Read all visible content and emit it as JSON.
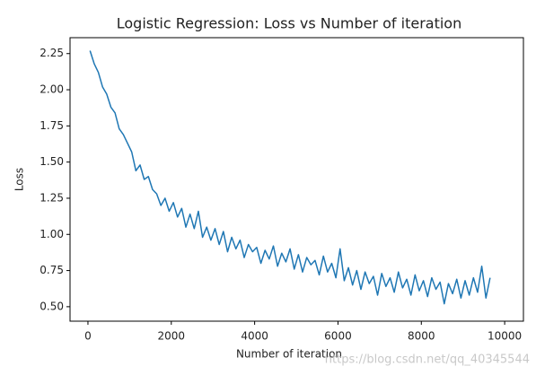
{
  "chart_data": {
    "type": "line",
    "title": "Logistic Regression: Loss vs Number of iteration",
    "x_label": "Number of iteration",
    "y_label": "Loss",
    "watermark": "https://blog.csdn.net/qq_40345544",
    "x": [
      50,
      150,
      250,
      350,
      450,
      550,
      650,
      750,
      850,
      950,
      1050,
      1150,
      1250,
      1350,
      1450,
      1550,
      1650,
      1750,
      1850,
      1950,
      2050,
      2150,
      2250,
      2350,
      2450,
      2550,
      2650,
      2750,
      2850,
      2950,
      3050,
      3150,
      3250,
      3350,
      3450,
      3550,
      3650,
      3750,
      3850,
      3950,
      4050,
      4150,
      4250,
      4350,
      4450,
      4550,
      4650,
      4750,
      4850,
      4950,
      5050,
      5150,
      5250,
      5350,
      5450,
      5550,
      5650,
      5750,
      5850,
      5950,
      6050,
      6150,
      6250,
      6350,
      6450,
      6550,
      6650,
      6750,
      6850,
      6950,
      7050,
      7150,
      7250,
      7350,
      7450,
      7550,
      7650,
      7750,
      7850,
      7950,
      8050,
      8150,
      8250,
      8350,
      8450,
      8550,
      8650,
      8750,
      8850,
      8950,
      9050,
      9150,
      9250,
      9350,
      9450,
      9550,
      9650
    ],
    "series": [
      {
        "name": "Loss",
        "color": "#1f77b4",
        "values": [
          2.27,
          2.18,
          2.12,
          2.02,
          1.97,
          1.88,
          1.84,
          1.73,
          1.69,
          1.63,
          1.57,
          1.44,
          1.48,
          1.38,
          1.4,
          1.31,
          1.28,
          1.2,
          1.25,
          1.16,
          1.22,
          1.12,
          1.18,
          1.05,
          1.14,
          1.04,
          1.16,
          0.98,
          1.05,
          0.96,
          1.04,
          0.93,
          1.02,
          0.88,
          0.98,
          0.9,
          0.96,
          0.84,
          0.93,
          0.88,
          0.91,
          0.8,
          0.89,
          0.83,
          0.92,
          0.78,
          0.87,
          0.81,
          0.9,
          0.76,
          0.86,
          0.74,
          0.84,
          0.79,
          0.82,
          0.72,
          0.85,
          0.74,
          0.8,
          0.7,
          0.9,
          0.68,
          0.77,
          0.65,
          0.75,
          0.62,
          0.74,
          0.66,
          0.71,
          0.58,
          0.73,
          0.64,
          0.7,
          0.6,
          0.74,
          0.63,
          0.69,
          0.58,
          0.72,
          0.61,
          0.68,
          0.57,
          0.7,
          0.62,
          0.67,
          0.52,
          0.66,
          0.59,
          0.69,
          0.56,
          0.68,
          0.58,
          0.7,
          0.6,
          0.78,
          0.56,
          0.7
        ]
      }
    ],
    "xlim": [
      -430,
      10450
    ],
    "ylim": [
      0.4,
      2.36
    ],
    "xticks": [
      0,
      2000,
      4000,
      6000,
      8000,
      10000
    ],
    "yticks": [
      {
        "value": 0.5,
        "label": "0.50"
      },
      {
        "value": 0.75,
        "label": "0.75"
      },
      {
        "value": 1.0,
        "label": "1.00"
      },
      {
        "value": 1.25,
        "label": "1.25"
      },
      {
        "value": 1.5,
        "label": "1.50"
      },
      {
        "value": 1.75,
        "label": "1.75"
      },
      {
        "value": 2.0,
        "label": "2.00"
      },
      {
        "value": 2.25,
        "label": "2.25"
      }
    ],
    "grid": false
  }
}
